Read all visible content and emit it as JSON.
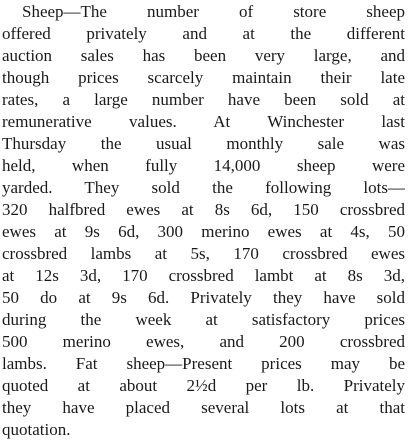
{
  "article": {
    "lines": [
      "Sheep—The number of store sheep",
      "offered privately and at the different",
      "auction sales has been very large, and",
      "though prices scarcely maintain their late",
      "rates, a large number have been sold at",
      "remunerative values. At Winchester last",
      "Thursday the usual monthly sale was",
      "held, when fully 14,000 sheep were",
      "yarded. They sold the following lots—",
      "320 halfbred ewes at 8s 6d, 150 crossbred",
      "ewes at 9s 6d, 300 merino ewes at 4s, 50",
      "crossbred lambs at 5s, 170 crossbred ewes",
      "at 12s 3d, 170 crossbred lambt at 8s 3d,",
      "50 do at 9s 6d. Privately they have sold",
      "during the week at satisfactory prices",
      "500 merino ewes, and 200 crossbred",
      "lambs. Fat sheep—Present prices may be",
      "quoted at about 2½d per lb. Privately",
      "they have placed several lots at that",
      "quotation."
    ]
  }
}
